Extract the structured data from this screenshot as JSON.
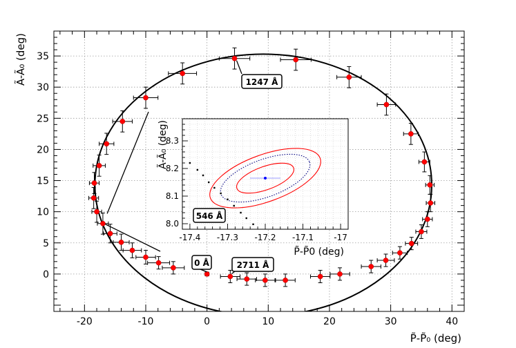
{
  "chart_data": [
    {
      "type": "scatter",
      "xlabel": "P̃-P̃₀ (deg)",
      "ylabel": "Ã-Ã₀ (deg)",
      "xlim": [
        -25,
        42
      ],
      "ylim": [
        -6,
        39
      ],
      "xticks": [
        -20,
        -10,
        0,
        10,
        20,
        30,
        40
      ],
      "yticks": [
        0,
        5,
        10,
        15,
        20,
        25,
        30,
        35
      ],
      "grid": true,
      "ellipse_fit": {
        "cx": 9.2,
        "cy": 14.3,
        "rx": 27.5,
        "ry": 21.0,
        "rotation_deg": 0
      },
      "series": [
        {
          "marker_color": "#ff0000",
          "points": [
            {
              "x": 0,
              "y": 0,
              "xerr": 0.3,
              "yerr": 0.3
            },
            {
              "x": 3.8,
              "y": -0.4,
              "xerr": 1.6,
              "yerr": 1.0
            },
            {
              "x": 6.5,
              "y": -0.8,
              "xerr": 1.6,
              "yerr": 1.0
            },
            {
              "x": 9.5,
              "y": -1.0,
              "xerr": 1.6,
              "yerr": 1.0
            },
            {
              "x": 12.8,
              "y": -1.0,
              "xerr": 1.6,
              "yerr": 1.0
            },
            {
              "x": 18.5,
              "y": -0.4,
              "xerr": 1.6,
              "yerr": 1.0
            },
            {
              "x": 21.7,
              "y": 0.0,
              "xerr": 1.6,
              "yerr": 1.0
            },
            {
              "x": 26.8,
              "y": 1.2,
              "xerr": 1.6,
              "yerr": 1.0
            },
            {
              "x": 29.2,
              "y": 2.2,
              "xerr": 1.4,
              "yerr": 1.0
            },
            {
              "x": 31.5,
              "y": 3.4,
              "xerr": 1.2,
              "yerr": 1.0
            },
            {
              "x": 33.4,
              "y": 4.9,
              "xerr": 1.0,
              "yerr": 1.0
            },
            {
              "x": 35.0,
              "y": 6.8,
              "xerr": 0.9,
              "yerr": 1.1
            },
            {
              "x": 36.0,
              "y": 8.8,
              "xerr": 0.8,
              "yerr": 1.2
            },
            {
              "x": 36.5,
              "y": 11.4,
              "xerr": 0.7,
              "yerr": 1.4
            },
            {
              "x": 36.4,
              "y": 14.3,
              "xerr": 0.7,
              "yerr": 1.5
            },
            {
              "x": 35.5,
              "y": 18.0,
              "xerr": 0.9,
              "yerr": 1.6
            },
            {
              "x": 33.3,
              "y": 22.5,
              "xerr": 1.2,
              "yerr": 1.7
            },
            {
              "x": 29.3,
              "y": 27.2,
              "xerr": 1.5,
              "yerr": 1.7
            },
            {
              "x": 23.2,
              "y": 31.6,
              "xerr": 2.0,
              "yerr": 1.7
            },
            {
              "x": 14.5,
              "y": 34.4,
              "xerr": 2.5,
              "yerr": 1.7
            },
            {
              "x": 4.5,
              "y": 34.6,
              "xerr": 2.5,
              "yerr": 1.7
            },
            {
              "x": -4.0,
              "y": 32.2,
              "xerr": 2.3,
              "yerr": 1.7
            },
            {
              "x": -10.0,
              "y": 28.3,
              "xerr": 2.0,
              "yerr": 1.7
            },
            {
              "x": -13.8,
              "y": 24.5,
              "xerr": 1.6,
              "yerr": 1.7
            },
            {
              "x": -16.4,
              "y": 20.9,
              "xerr": 1.2,
              "yerr": 1.7
            },
            {
              "x": -17.6,
              "y": 17.4,
              "xerr": 1.0,
              "yerr": 1.7
            },
            {
              "x": -18.4,
              "y": 14.6,
              "xerr": 0.8,
              "yerr": 1.7
            },
            {
              "x": -18.5,
              "y": 12.2,
              "xerr": 0.8,
              "yerr": 1.7
            },
            {
              "x": -18.0,
              "y": 10.0,
              "xerr": 0.8,
              "yerr": 1.7
            },
            {
              "x": -17.0,
              "y": 8.1,
              "xerr": 0.9,
              "yerr": 1.7
            },
            {
              "x": -15.8,
              "y": 6.5,
              "xerr": 1.1,
              "yerr": 1.5
            },
            {
              "x": -14.0,
              "y": 5.1,
              "xerr": 1.3,
              "yerr": 1.3
            },
            {
              "x": -12.2,
              "y": 3.8,
              "xerr": 1.5,
              "yerr": 1.2
            },
            {
              "x": -10.0,
              "y": 2.7,
              "xerr": 1.6,
              "yerr": 1.1
            },
            {
              "x": -7.9,
              "y": 1.8,
              "xerr": 1.8,
              "yerr": 1.0
            },
            {
              "x": -5.5,
              "y": 1.0,
              "xerr": 1.8,
              "yerr": 1.0
            }
          ]
        }
      ],
      "annotations": [
        {
          "text": "1247 Å",
          "target": {
            "x": 4.5,
            "y": 34.6
          }
        },
        {
          "text": "0 Å",
          "target": {
            "x": 0,
            "y": 0
          }
        },
        {
          "text": "2711 Å",
          "target": {
            "x": 3.8,
            "y": -0.4
          }
        }
      ]
    },
    {
      "type": "scatter",
      "xlabel": "P̃-P̃0 (deg)",
      "ylabel": "Ã-Ã₀ (deg)",
      "xlim": [
        -17.42,
        -16.98
      ],
      "ylim": [
        7.98,
        8.38
      ],
      "xticks": [
        -17.4,
        -17.3,
        -17.2,
        -17.1,
        -17
      ],
      "xtick_labels": [
        "-17.4",
        "-17.3",
        "-17.2",
        "-17.1",
        "-17"
      ],
      "yticks": [
        8.0,
        8.1,
        8.2,
        8.3
      ],
      "ytick_labels": [
        "8.0",
        "8.1",
        "8.2",
        "8.3"
      ],
      "grid": true,
      "center_point": {
        "x": -17.2,
        "y": 8.165
      },
      "contours": [
        {
          "style": "solid",
          "color": "#ff0000",
          "rx": 0.155,
          "ry": 0.085,
          "rotation_deg": 20
        },
        {
          "style": "dotted",
          "color": "#000080",
          "rx": 0.125,
          "ry": 0.068,
          "rotation_deg": 20
        },
        {
          "style": "solid",
          "color": "#ff0000",
          "rx": 0.08,
          "ry": 0.042,
          "rotation_deg": 20
        }
      ],
      "track_points": [
        {
          "x": -17.4,
          "y": 8.22
        },
        {
          "x": -17.38,
          "y": 8.195
        },
        {
          "x": -17.365,
          "y": 8.175
        },
        {
          "x": -17.35,
          "y": 8.15
        },
        {
          "x": -17.335,
          "y": 8.13
        },
        {
          "x": -17.318,
          "y": 8.11
        },
        {
          "x": -17.3,
          "y": 8.088
        },
        {
          "x": -17.283,
          "y": 8.065
        },
        {
          "x": -17.265,
          "y": 8.04
        },
        {
          "x": -17.25,
          "y": 8.02
        },
        {
          "x": -17.232,
          "y": 7.998
        }
      ],
      "annotations": [
        {
          "text": "546 Å"
        }
      ]
    }
  ]
}
